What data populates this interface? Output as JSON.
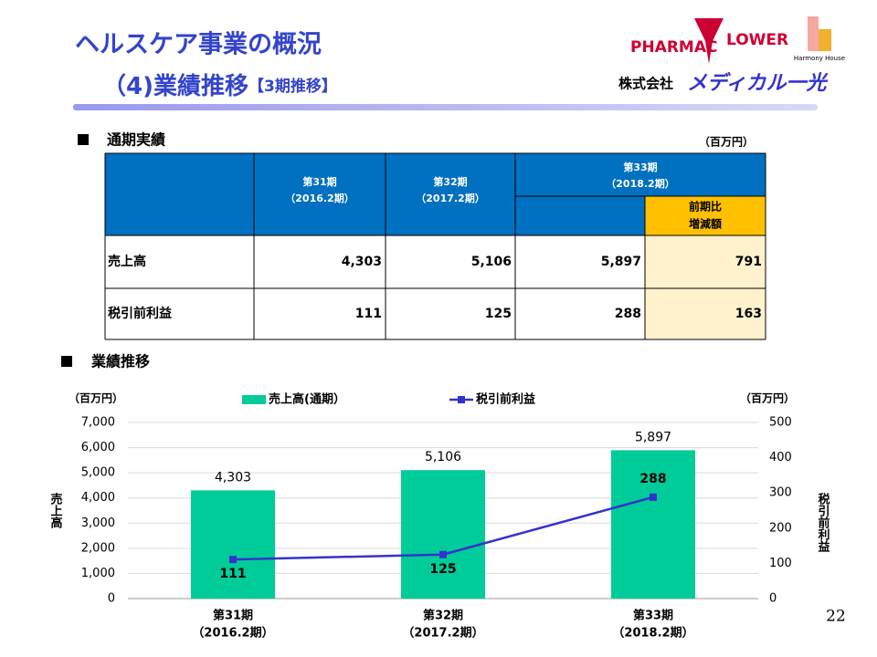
{
  "header": {
    "title": "ヘルスケア事業の概況",
    "subtitle": "（4)業績推移",
    "subtitle_note": "【3期推移】",
    "brand_pharmac": "PHARMAC",
    "brand_flower": "LOWER",
    "brand_harmony": "Harmony House",
    "company_prefix": "株式会社",
    "company_name": "メディカル一光"
  },
  "table": {
    "section_title": "通期実績",
    "unit": "（百万円）",
    "columns": [
      {
        "period": "第31期",
        "fiscal": "（2016.2期）"
      },
      {
        "period": "第32期",
        "fiscal": "（2017.2期）"
      },
      {
        "period": "第33期",
        "fiscal": "（2018.2期）"
      }
    ],
    "change_header": [
      "前期比",
      "増減額"
    ],
    "rows": [
      [
        "売上高",
        "4,303",
        "5,106",
        "5,897",
        "791"
      ],
      [
        "税引前利益",
        "111",
        "125",
        "288",
        "163"
      ]
    ]
  },
  "chart_data": {
    "type": "bar_line",
    "section_title": "業績推移",
    "categories": [
      "第31期",
      "第32期",
      "第33期"
    ],
    "category_periods": [
      "（2016.2期）",
      "（2017.2期）",
      "（2018.2期）"
    ],
    "series": [
      {
        "name": "売上高(通期）",
        "color": "#00cc99",
        "type": "bar",
        "values": [
          4303,
          5106,
          5897
        ],
        "value_labels": [
          "4,303",
          "5,106",
          "5,897"
        ]
      },
      {
        "name": "税引前利益",
        "color": "#3333cc",
        "type": "line",
        "axis": "y2",
        "values": [
          111,
          125,
          288
        ]
      }
    ],
    "ylim": [
      0,
      7000
    ],
    "yticks": [
      0,
      {
        "value": 1000,
        "label": "1,000"
      },
      {
        "value": 2000,
        "label": "2,000"
      },
      {
        "value": 3000,
        "label": "3,000"
      },
      {
        "value": 4000,
        "label": "4,000"
      },
      {
        "value": 5000,
        "label": "5,000"
      },
      {
        "value": 6000,
        "label": "6,000"
      },
      {
        "value": 7000,
        "label": "7,000"
      }
    ],
    "y2lim": [
      0,
      500
    ],
    "y2ticks": [
      0,
      100,
      200,
      300,
      400,
      500
    ],
    "y_label": "売上高",
    "y2_label": "税引前利益",
    "y_unit": "（百万円）",
    "y2_unit": "（百万円）",
    "grid": true
  },
  "page_number": "22"
}
